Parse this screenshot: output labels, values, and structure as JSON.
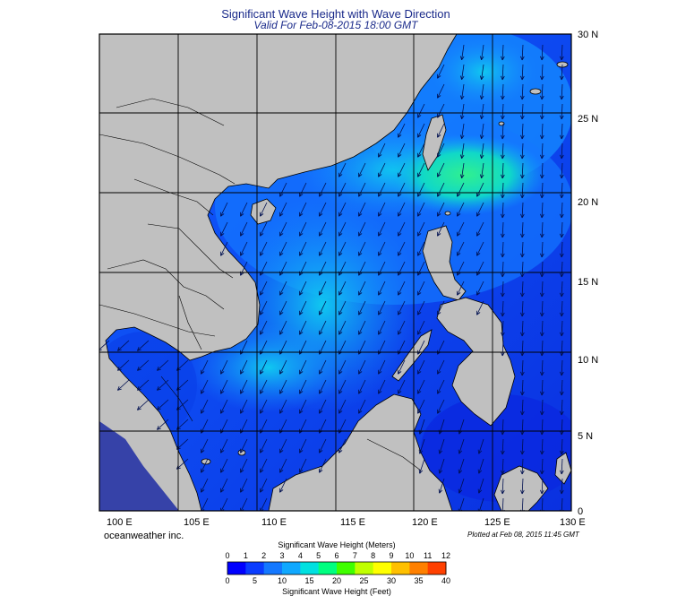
{
  "title": "Significant Wave Height with Wave Direction",
  "subtitle": "Valid For Feb-08-2015 18:00 GMT",
  "credit": "oceanweather inc.",
  "plotted": "Plotted at Feb 08, 2015 11:45 GMT",
  "x_ticks": [
    "100 E",
    "105 E",
    "110 E",
    "115 E",
    "120 E",
    "125 E",
    "130 E"
  ],
  "y_ticks": [
    "30 N",
    "25 N",
    "20 N",
    "15 N",
    "10 N",
    "5 N",
    "0"
  ],
  "legend": {
    "title_top": "Significant Wave Height (Meters)",
    "title_bottom": "Significant Wave Height (Feet)",
    "meters": [
      "0",
      "1",
      "2",
      "3",
      "4",
      "5",
      "6",
      "7",
      "8",
      "9",
      "10",
      "11",
      "12"
    ],
    "feet": [
      "0",
      "5",
      "10",
      "15",
      "20",
      "25",
      "30",
      "35",
      "40"
    ],
    "colors": [
      "#0000ff",
      "#0a3cff",
      "#1478ff",
      "#10a8ff",
      "#00e0e0",
      "#00ff80",
      "#40ff00",
      "#c0ff00",
      "#ffff00",
      "#ffc000",
      "#ff8000",
      "#ff4000"
    ]
  },
  "colors": {
    "land": "#c0c0c0",
    "coast": "#000000",
    "grid": "#000000",
    "arrow": "#001050"
  }
}
